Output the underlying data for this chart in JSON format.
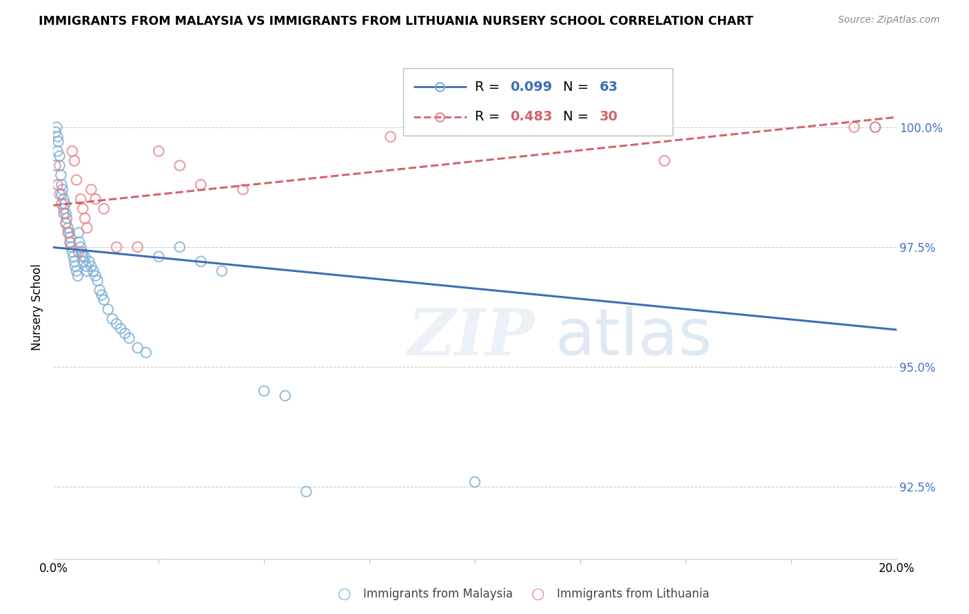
{
  "title": "IMMIGRANTS FROM MALAYSIA VS IMMIGRANTS FROM LITHUANIA NURSERY SCHOOL CORRELATION CHART",
  "source": "Source: ZipAtlas.com",
  "ylabel": "Nursery School",
  "yticks": [
    92.5,
    95.0,
    97.5,
    100.0
  ],
  "xlim": [
    0.0,
    20.0
  ],
  "ylim": [
    91.0,
    101.5
  ],
  "malaysia_color": "#7bafd4",
  "lithuania_color": "#e8808a",
  "malaysia_label": "Immigrants from Malaysia",
  "lithuania_label": "Immigrants from Lithuania",
  "legend_r_malaysia": "0.099",
  "legend_n_malaysia": "63",
  "legend_r_lithuania": "0.483",
  "legend_n_lithuania": "30",
  "malaysia_x": [
    0.05,
    0.08,
    0.1,
    0.1,
    0.12,
    0.15,
    0.15,
    0.18,
    0.2,
    0.2,
    0.22,
    0.25,
    0.25,
    0.28,
    0.3,
    0.3,
    0.32,
    0.35,
    0.38,
    0.4,
    0.4,
    0.42,
    0.45,
    0.48,
    0.5,
    0.52,
    0.55,
    0.58,
    0.6,
    0.62,
    0.65,
    0.68,
    0.7,
    0.72,
    0.75,
    0.78,
    0.8,
    0.85,
    0.9,
    0.95,
    1.0,
    1.05,
    1.1,
    1.15,
    1.2,
    1.3,
    1.4,
    1.5,
    1.6,
    1.7,
    1.8,
    2.0,
    2.2,
    2.5,
    3.0,
    3.5,
    4.0,
    5.0,
    5.5,
    6.0,
    10.0,
    11.0,
    19.5
  ],
  "malaysia_y": [
    99.9,
    100.0,
    99.8,
    99.5,
    99.7,
    99.4,
    99.2,
    99.0,
    98.8,
    98.6,
    98.7,
    98.5,
    98.3,
    98.4,
    98.2,
    98.0,
    98.1,
    97.9,
    97.8,
    97.7,
    97.6,
    97.5,
    97.4,
    97.3,
    97.2,
    97.1,
    97.0,
    96.9,
    97.8,
    97.6,
    97.5,
    97.4,
    97.3,
    97.2,
    97.3,
    97.1,
    97.0,
    97.2,
    97.1,
    97.0,
    96.9,
    96.8,
    96.6,
    96.5,
    96.4,
    96.2,
    96.0,
    95.9,
    95.8,
    95.7,
    95.6,
    95.4,
    95.3,
    97.3,
    97.5,
    97.2,
    97.0,
    94.5,
    94.4,
    92.4,
    92.6,
    100.0,
    100.0
  ],
  "lithuania_x": [
    0.05,
    0.1,
    0.15,
    0.2,
    0.25,
    0.3,
    0.35,
    0.4,
    0.45,
    0.5,
    0.55,
    0.6,
    0.65,
    0.7,
    0.75,
    0.8,
    0.9,
    1.0,
    1.2,
    1.5,
    2.0,
    2.5,
    3.0,
    3.5,
    4.5,
    8.0,
    12.5,
    14.5,
    19.0,
    19.5
  ],
  "lithuania_y": [
    99.2,
    98.8,
    98.6,
    98.4,
    98.2,
    98.0,
    97.8,
    97.6,
    99.5,
    99.3,
    98.9,
    97.4,
    98.5,
    98.3,
    98.1,
    97.9,
    98.7,
    98.5,
    98.3,
    97.5,
    97.5,
    99.5,
    99.2,
    98.8,
    98.7,
    99.8,
    100.0,
    99.3,
    100.0,
    100.0
  ]
}
